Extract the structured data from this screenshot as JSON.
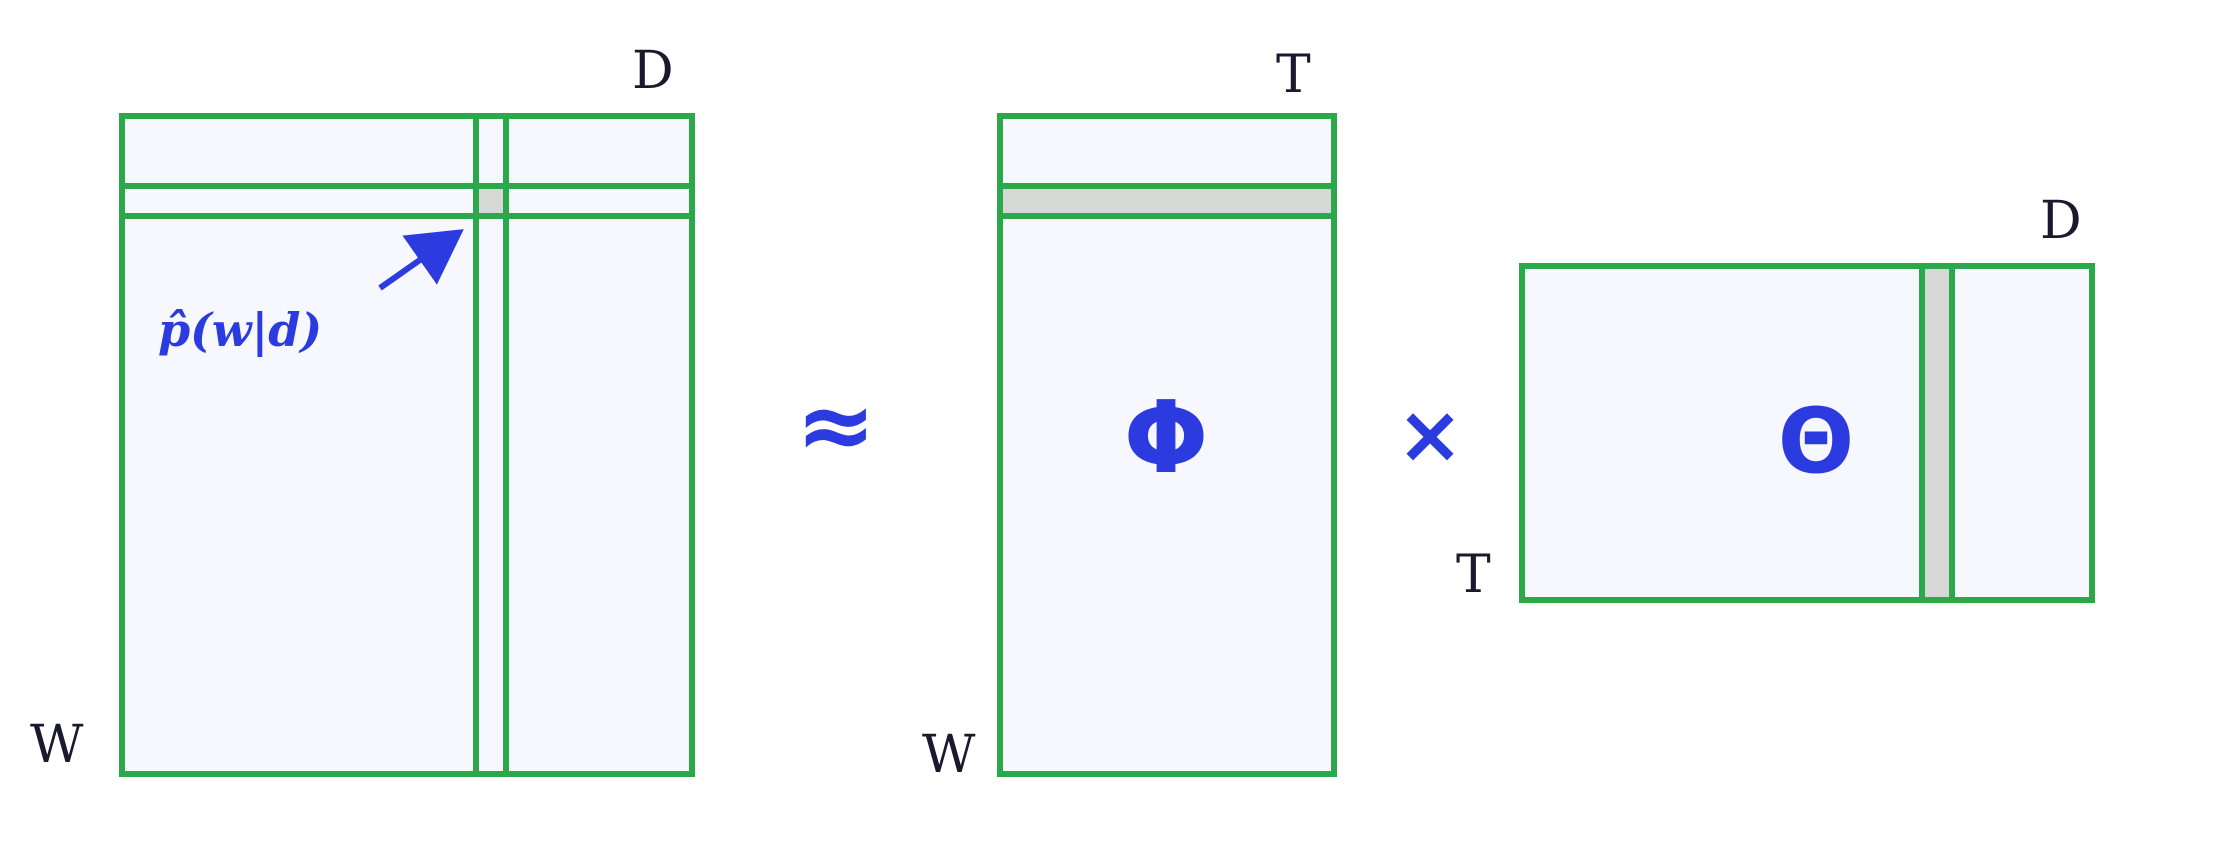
{
  "colors": {
    "border": "#2ba84a",
    "fill": "#f7f8fd",
    "highlight": "#d6d8d6",
    "accent": "#2b3be0",
    "text": "#1a1a2e"
  },
  "matrix_a": {
    "row_label": "W",
    "col_label": "D",
    "cell_label": "p̂(w|d)"
  },
  "operators": {
    "approx": "≈",
    "times": "×"
  },
  "matrix_phi": {
    "row_label": "W",
    "col_label": "T",
    "symbol": "Φ"
  },
  "matrix_theta": {
    "row_label": "T",
    "col_label": "D",
    "symbol": "Θ"
  }
}
